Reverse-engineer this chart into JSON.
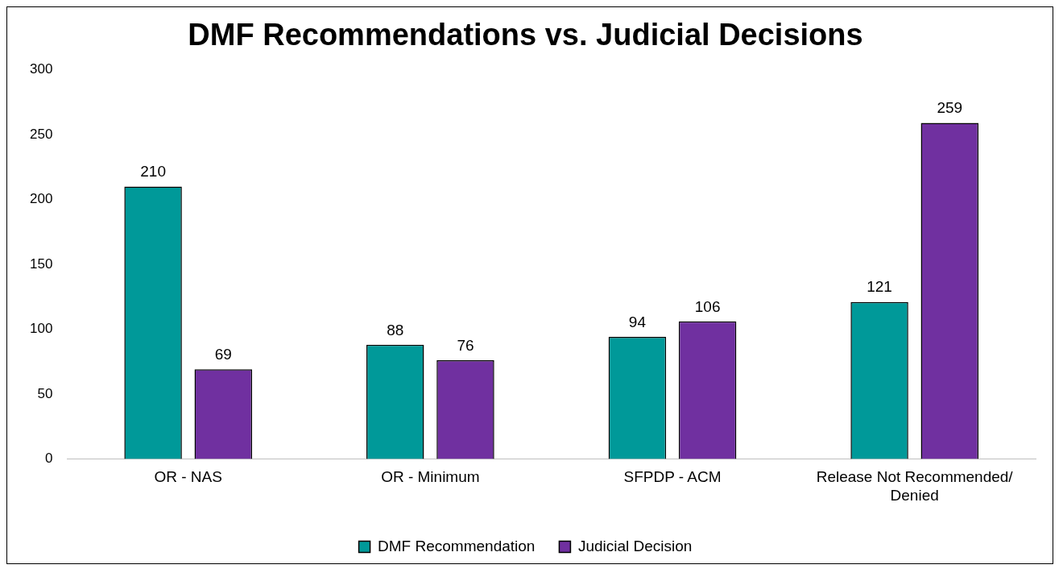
{
  "chart_data": {
    "type": "bar",
    "title": "DMF Recommendations vs. Judicial Decisions",
    "categories": [
      "OR - NAS",
      "OR - Minimum",
      "SFPDP - ACM",
      "Release Not Recommended/ Denied"
    ],
    "series": [
      {
        "name": "DMF Recommendation",
        "color": "#009999",
        "values": [
          210,
          88,
          94,
          121
        ]
      },
      {
        "name": "Judicial Decision",
        "color": "#7030a0",
        "values": [
          69,
          76,
          106,
          259
        ]
      }
    ],
    "ylim": [
      0,
      300
    ],
    "yticks": [
      0,
      50,
      100,
      150,
      200,
      250,
      300
    ],
    "data_labels": true,
    "legend": "bottom"
  }
}
